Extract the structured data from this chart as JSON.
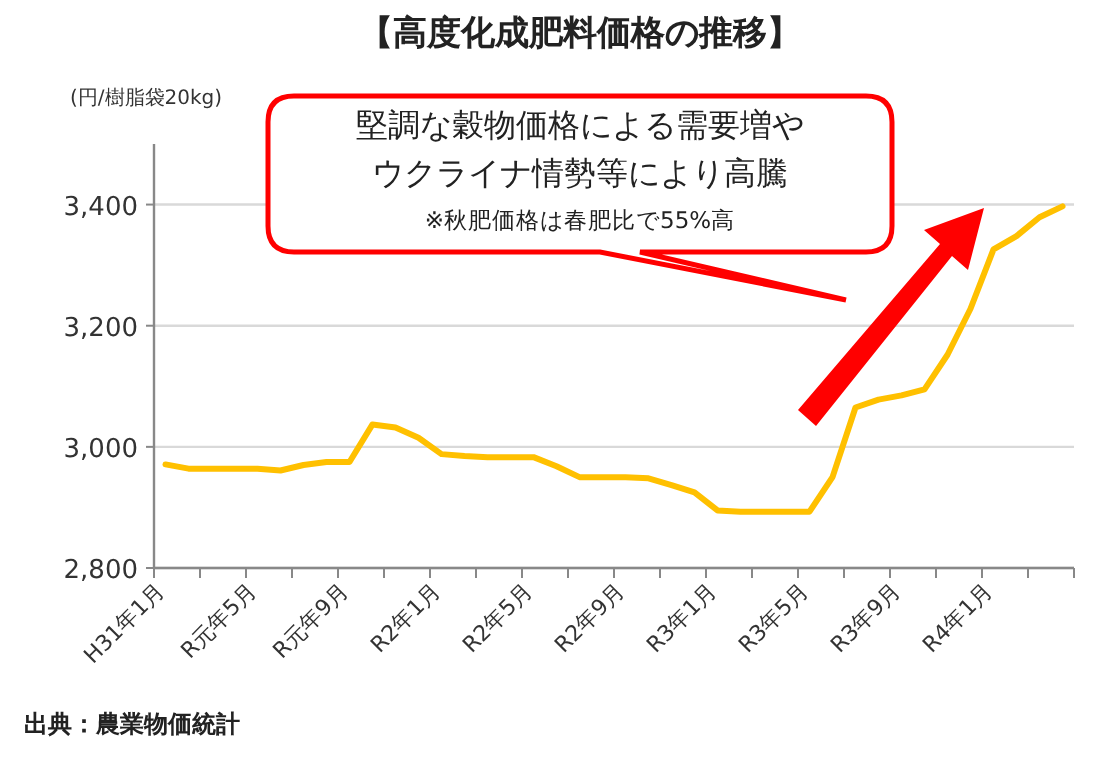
{
  "chart_data": {
    "type": "line",
    "title": "【高度化成肥料価格の推移】",
    "ylabel": "(円/樹脂袋20kg)",
    "categories": [
      "H31年1月",
      null,
      null,
      null,
      "R元年5月",
      null,
      null,
      null,
      "R元年9月",
      null,
      null,
      null,
      "R2年1月",
      null,
      null,
      null,
      "R2年5月",
      null,
      null,
      null,
      "R2年9月",
      null,
      null,
      null,
      "R3年1月",
      null,
      null,
      null,
      "R3年5月",
      null,
      null,
      null,
      "R3年9月",
      null,
      null,
      null,
      "R4年1月",
      null,
      null,
      null
    ],
    "series": [
      {
        "color": "#ffc000",
        "values": [
          2971,
          2964,
          2964,
          2964,
          2964,
          2961,
          2970,
          2975,
          2975,
          3037,
          3032,
          3015,
          2988,
          2985,
          2983,
          2983,
          2983,
          2968,
          2950,
          2950,
          2950,
          2948,
          2937,
          2925,
          2895,
          2893,
          2893,
          2893,
          2893,
          2950,
          3065,
          3078,
          3085,
          3095,
          3152,
          3228,
          3326,
          3348,
          3379,
          3397
        ]
      }
    ],
    "ylim": [
      2800,
      3500
    ],
    "yticks": [
      {
        "value": 2800,
        "label": "2,800"
      },
      {
        "value": 3000,
        "label": "3,000"
      },
      {
        "value": 3200,
        "label": "3,200"
      },
      {
        "value": 3400,
        "label": "3,400"
      }
    ],
    "grid": "y",
    "marker": "none",
    "line_style": "solid",
    "annotations": [
      "堅調な穀物価格による需要増や",
      "ウクライナ情勢等により高騰",
      "※秋肥価格は春肥比で55%高",
      "出典：農業物価統計"
    ]
  }
}
